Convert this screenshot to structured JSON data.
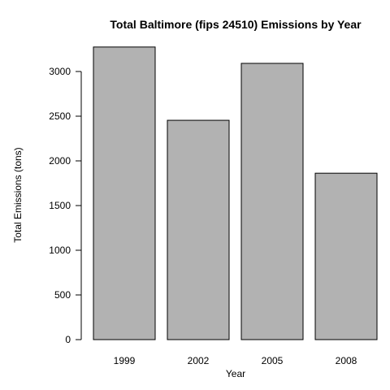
{
  "chart_data": {
    "type": "bar",
    "title": "Total Baltimore (fips 24510) Emissions by Year",
    "xlabel": "Year",
    "ylabel": "Total Emissions (tons)",
    "categories": [
      "1999",
      "2002",
      "2005",
      "2008"
    ],
    "values": [
      3274,
      2454,
      3091,
      1862
    ],
    "ylim": [
      0,
      3300
    ],
    "yticks": [
      0,
      500,
      1000,
      1500,
      2000,
      2500,
      3000
    ],
    "grid": false,
    "legend": "none",
    "colors": {
      "bar_fill": "#b2b2b2",
      "bar_stroke": "#000000",
      "background": "#ffffff"
    }
  }
}
